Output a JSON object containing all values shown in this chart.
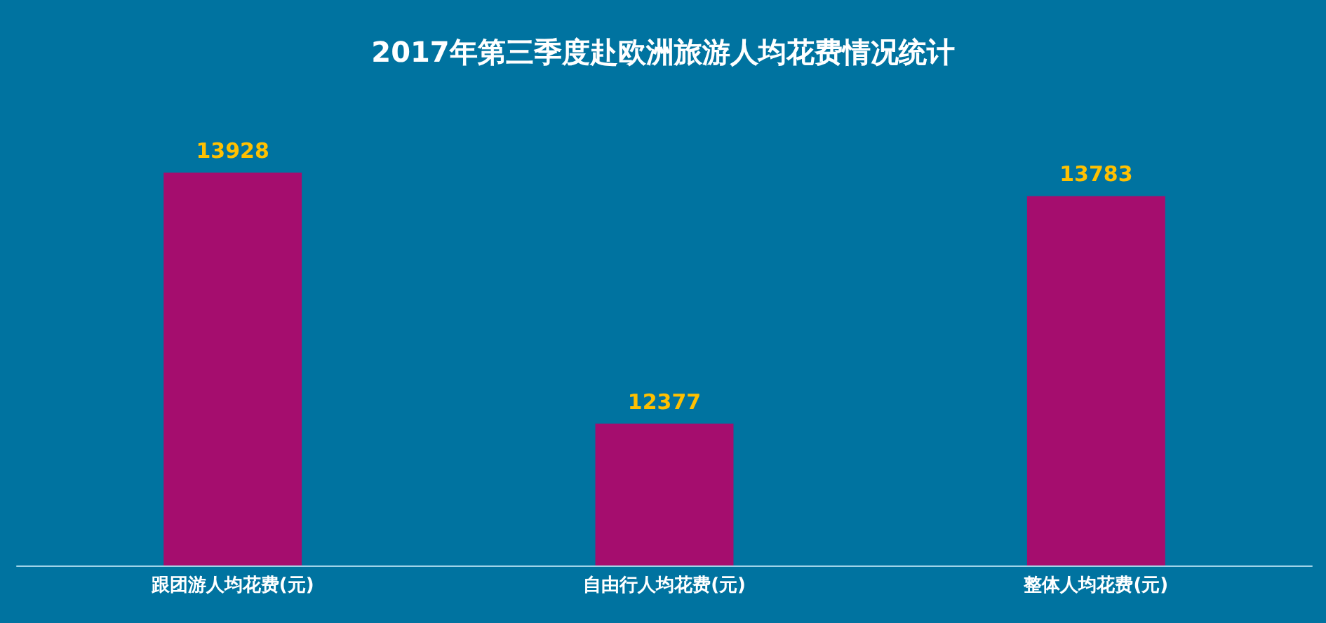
{
  "chart_data": {
    "type": "bar",
    "title": "2017年第三季度赴欧洲旅游人均花费情况统计",
    "categories": [
      "跟团游人均花费(元)",
      "自由行人均花费(元)",
      "整体人均花费(元)"
    ],
    "values": [
      13928,
      12377,
      13783
    ],
    "color": "#a50d6e",
    "ylim": [
      11500,
      13928
    ],
    "tick_labels": "x",
    "data_labels": true
  }
}
